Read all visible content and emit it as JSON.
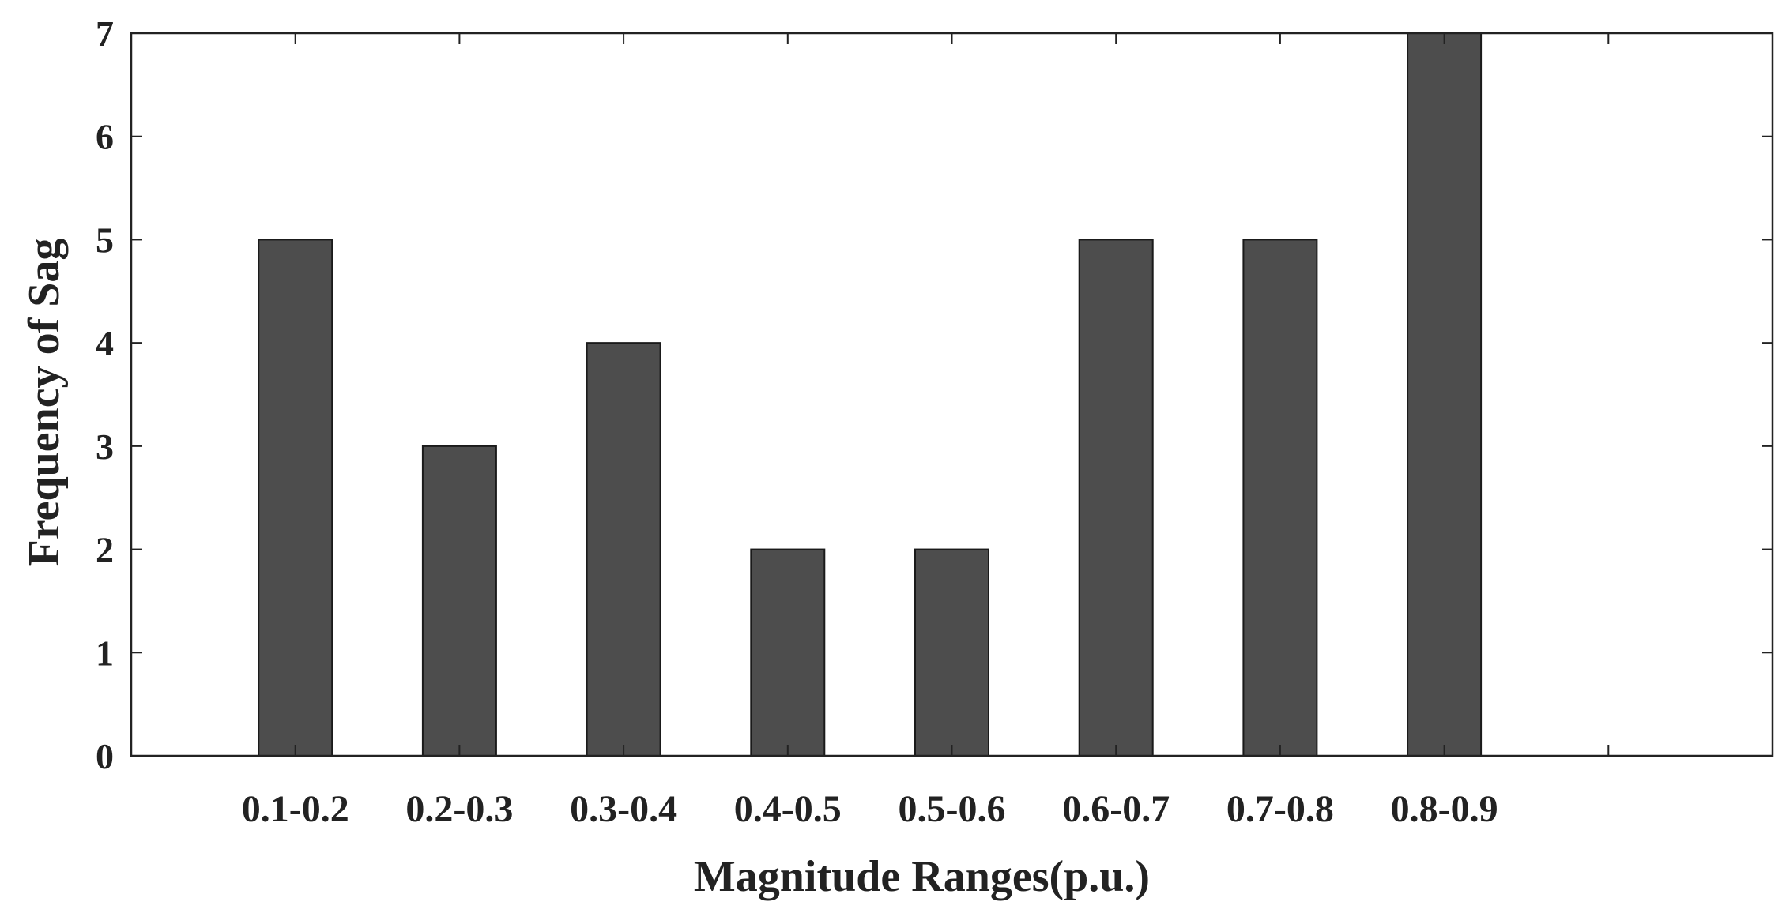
{
  "chart_data": {
    "type": "bar",
    "categories": [
      "0.1-0.2",
      "0.2-0.3",
      "0.3-0.4",
      "0.4-0.5",
      "0.5-0.6",
      "0.6-0.7",
      "0.7-0.8",
      "0.8-0.9"
    ],
    "values": [
      5,
      3,
      4,
      2,
      2,
      5,
      5,
      7
    ],
    "xlabel": "Magnitude Ranges(p.u.)",
    "ylabel": "Frequency of Sag",
    "ylim": [
      0,
      7
    ],
    "yticks": [
      "0",
      "1",
      "2",
      "3",
      "4",
      "5",
      "6",
      "7"
    ],
    "grid": false,
    "legend": "none",
    "bar_color": "#4d4d4d"
  }
}
